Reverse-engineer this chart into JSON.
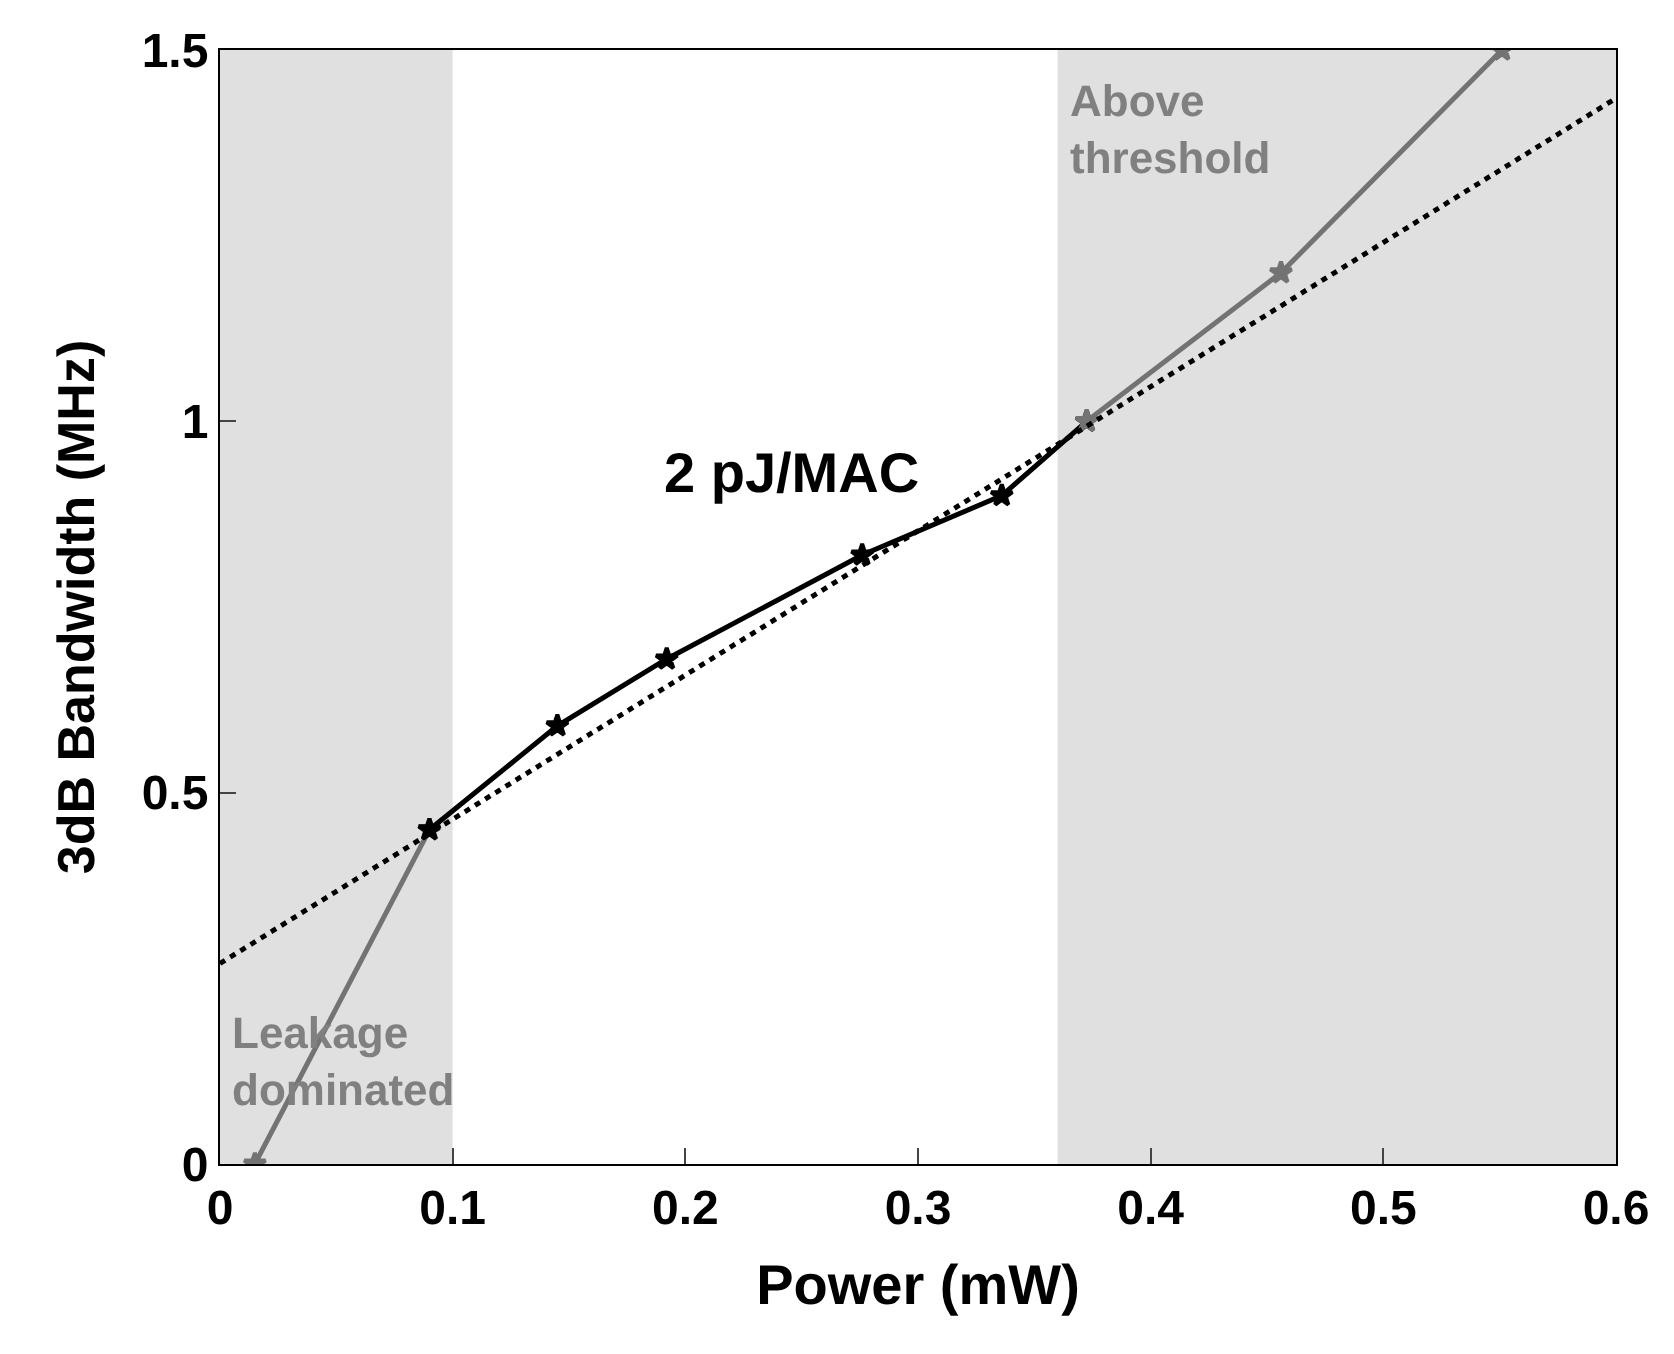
{
  "chart_data": {
    "type": "line",
    "xlabel": "Power (mW)",
    "ylabel": "3dB Bandwidth (MHz)",
    "xlim": [
      0,
      0.6
    ],
    "ylim": [
      0,
      1.5
    ],
    "xticks": [
      0,
      0.1,
      0.2,
      0.3,
      0.4,
      0.5,
      0.6
    ],
    "yticks": [
      0,
      0.5,
      1,
      1.5
    ],
    "grid": false,
    "series": [
      {
        "color": "#737373",
        "x": [
          0.015,
          0.09
        ],
        "values": [
          0,
          0.45
        ],
        "marker": "star",
        "line_style": "solid"
      },
      {
        "color": "#000000",
        "x": [
          0.09,
          0.145,
          0.192,
          0.276,
          0.336,
          0.3725
        ],
        "values": [
          0.45,
          0.59,
          0.68,
          0.82,
          0.9,
          1.0
        ],
        "marker": "star",
        "line_style": "solid"
      },
      {
        "color": "#737373",
        "x": [
          0.3725,
          0.456,
          0.551
        ],
        "values": [
          1.0,
          1.2,
          1.5
        ],
        "marker": "star",
        "line_style": "solid"
      },
      {
        "color": "#000000",
        "x": [
          0,
          0.6
        ],
        "values": [
          0.27,
          1.435
        ],
        "marker": "none",
        "line_style": "dotted"
      }
    ],
    "bands": [
      {
        "axis": "x",
        "from": 0,
        "to": 0.1,
        "label": "Leakage dominated",
        "color": "#e0e0e0"
      },
      {
        "axis": "x",
        "from": 0.36,
        "to": 0.6,
        "label": "Above threshold",
        "color": "#e0e0e0"
      }
    ],
    "annotations": [
      "2 pJ/MAC"
    ]
  }
}
